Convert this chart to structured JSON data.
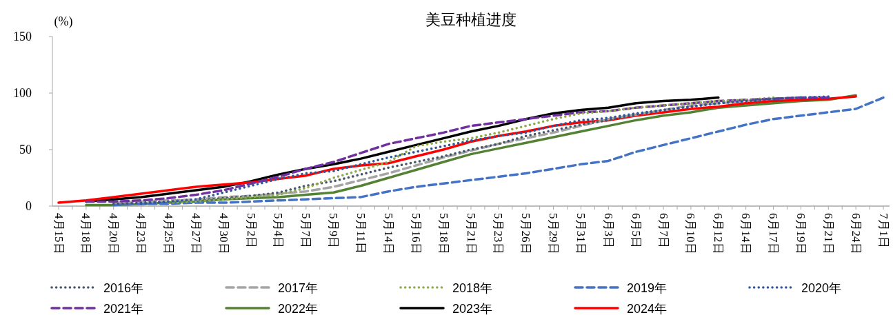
{
  "chart_data": {
    "type": "line",
    "title": "美豆种植进度",
    "ylabel": "(%)",
    "categories": [
      "4月15日",
      "4月18日",
      "4月20日",
      "4月23日",
      "4月25日",
      "4月27日",
      "4月30日",
      "5月2日",
      "5月4日",
      "5月7日",
      "5月9日",
      "5月11日",
      "5月14日",
      "5月16日",
      "5月18日",
      "5月21日",
      "5月23日",
      "5月26日",
      "5月29日",
      "5月31日",
      "6月3日",
      "6月5日",
      "6月7日",
      "6月10日",
      "6月12日",
      "6月14日",
      "6月17日",
      "6月19日",
      "6月21日",
      "6月24日",
      "7月1日"
    ],
    "ylim": [
      0,
      150
    ],
    "yticks": [
      0,
      50,
      100,
      150
    ],
    "grid": false,
    "legend": "bottom",
    "marker": "none",
    "series": [
      {
        "name": "2016年",
        "color": "#44546a",
        "line_style": "dotted",
        "values": [
          null,
          null,
          2,
          3,
          4,
          5,
          7,
          9,
          12,
          18,
          22,
          28,
          34,
          39,
          44,
          50,
          55,
          62,
          67,
          72,
          76,
          81,
          85,
          88,
          91,
          93,
          95,
          96,
          null,
          null,
          null
        ]
      },
      {
        "name": "2017年",
        "color": "#a5a5a5",
        "line_style": "dashed",
        "values": [
          null,
          null,
          3,
          4,
          5,
          6,
          8,
          9,
          11,
          13,
          17,
          23,
          29,
          36,
          43,
          49,
          55,
          60,
          65,
          71,
          77,
          81,
          85,
          89,
          91,
          93,
          95,
          96,
          null,
          null,
          null
        ]
      },
      {
        "name": "2018年",
        "color": "#8faa4a",
        "line_style": "dotted",
        "values": [
          null,
          null,
          null,
          null,
          3,
          4,
          6,
          8,
          10,
          16,
          25,
          32,
          39,
          53,
          57,
          60,
          65,
          71,
          77,
          82,
          84,
          87,
          89,
          91,
          93,
          94,
          96,
          null,
          null,
          null,
          null
        ]
      },
      {
        "name": "2019年",
        "color": "#4472c4",
        "line_style": "dashed",
        "values": [
          null,
          null,
          1,
          2,
          2,
          3,
          3,
          4,
          5,
          6,
          7,
          8,
          13,
          17,
          20,
          23,
          26,
          29,
          33,
          37,
          40,
          48,
          54,
          60,
          66,
          72,
          77,
          80,
          83,
          86,
          96
        ]
      },
      {
        "name": "2020年",
        "color": "#2f5597",
        "line_style": "dotted",
        "values": [
          null,
          null,
          null,
          2,
          4,
          6,
          12,
          18,
          24,
          29,
          31,
          37,
          43,
          48,
          53,
          58,
          62,
          65,
          71,
          76,
          78,
          82,
          85,
          88,
          91,
          93,
          95,
          96,
          97,
          null,
          null
        ]
      },
      {
        "name": "2021年",
        "color": "#7030a0",
        "line_style": "dashed",
        "values": [
          null,
          4,
          4,
          5,
          7,
          10,
          14,
          20,
          26,
          33,
          39,
          47,
          55,
          60,
          65,
          71,
          74,
          77,
          80,
          83,
          84,
          87,
          89,
          91,
          93,
          94,
          95,
          96,
          96,
          null,
          null
        ]
      },
      {
        "name": "2022年",
        "color": "#548235",
        "line_style": "solid",
        "values": [
          null,
          1,
          1,
          2,
          3,
          4,
          6,
          7,
          8,
          10,
          12,
          18,
          25,
          32,
          39,
          46,
          51,
          56,
          61,
          66,
          71,
          76,
          80,
          83,
          87,
          89,
          91,
          93,
          94,
          98,
          null
        ]
      },
      {
        "name": "2023年",
        "color": "#000000",
        "line_style": "solid",
        "values": [
          null,
          4,
          6,
          8,
          11,
          14,
          17,
          22,
          28,
          33,
          37,
          42,
          48,
          54,
          60,
          66,
          71,
          77,
          82,
          85,
          87,
          91,
          93,
          94,
          96,
          null,
          null,
          null,
          null,
          null,
          null
        ]
      },
      {
        "name": "2024年",
        "color": "#ff0000",
        "line_style": "solid",
        "values": [
          3,
          5,
          8,
          11,
          14,
          17,
          19,
          21,
          24,
          27,
          33,
          36,
          38,
          44,
          50,
          57,
          62,
          66,
          71,
          74,
          76,
          80,
          83,
          86,
          88,
          91,
          93,
          94,
          95,
          97,
          null
        ]
      }
    ]
  }
}
